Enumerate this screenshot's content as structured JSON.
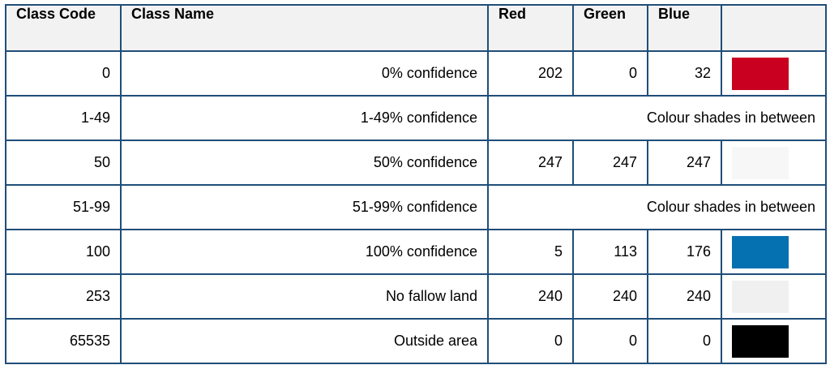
{
  "headers": {
    "class_code": "Class Code",
    "class_name": "Class Name",
    "red": "Red",
    "green": "Green",
    "blue": "Blue",
    "swatch": ""
  },
  "rows": [
    {
      "code": "0",
      "name": "0% confidence",
      "red": "202",
      "green": "0",
      "blue": "32",
      "color": "#ca0020"
    },
    {
      "code": "1-49",
      "name": "1-49% confidence",
      "note": "Colour shades in between"
    },
    {
      "code": "50",
      "name": "50% confidence",
      "red": "247",
      "green": "247",
      "blue": "247",
      "color": "#f7f7f7"
    },
    {
      "code": "51-99",
      "name": "51-99% confidence",
      "note": "Colour shades in between"
    },
    {
      "code": "100",
      "name": "100% confidence",
      "red": "5",
      "green": "113",
      "blue": "176",
      "color": "#0571b0"
    },
    {
      "code": "253",
      "name": "No fallow land",
      "red": "240",
      "green": "240",
      "blue": "240",
      "color": "#f0f0f0"
    },
    {
      "code": "65535",
      "name": "Outside area",
      "red": "0",
      "green": "0",
      "blue": "0",
      "color": "#000000"
    }
  ],
  "colors": {
    "border": "#1f4e79",
    "header_bg": "#f2f2f2"
  }
}
